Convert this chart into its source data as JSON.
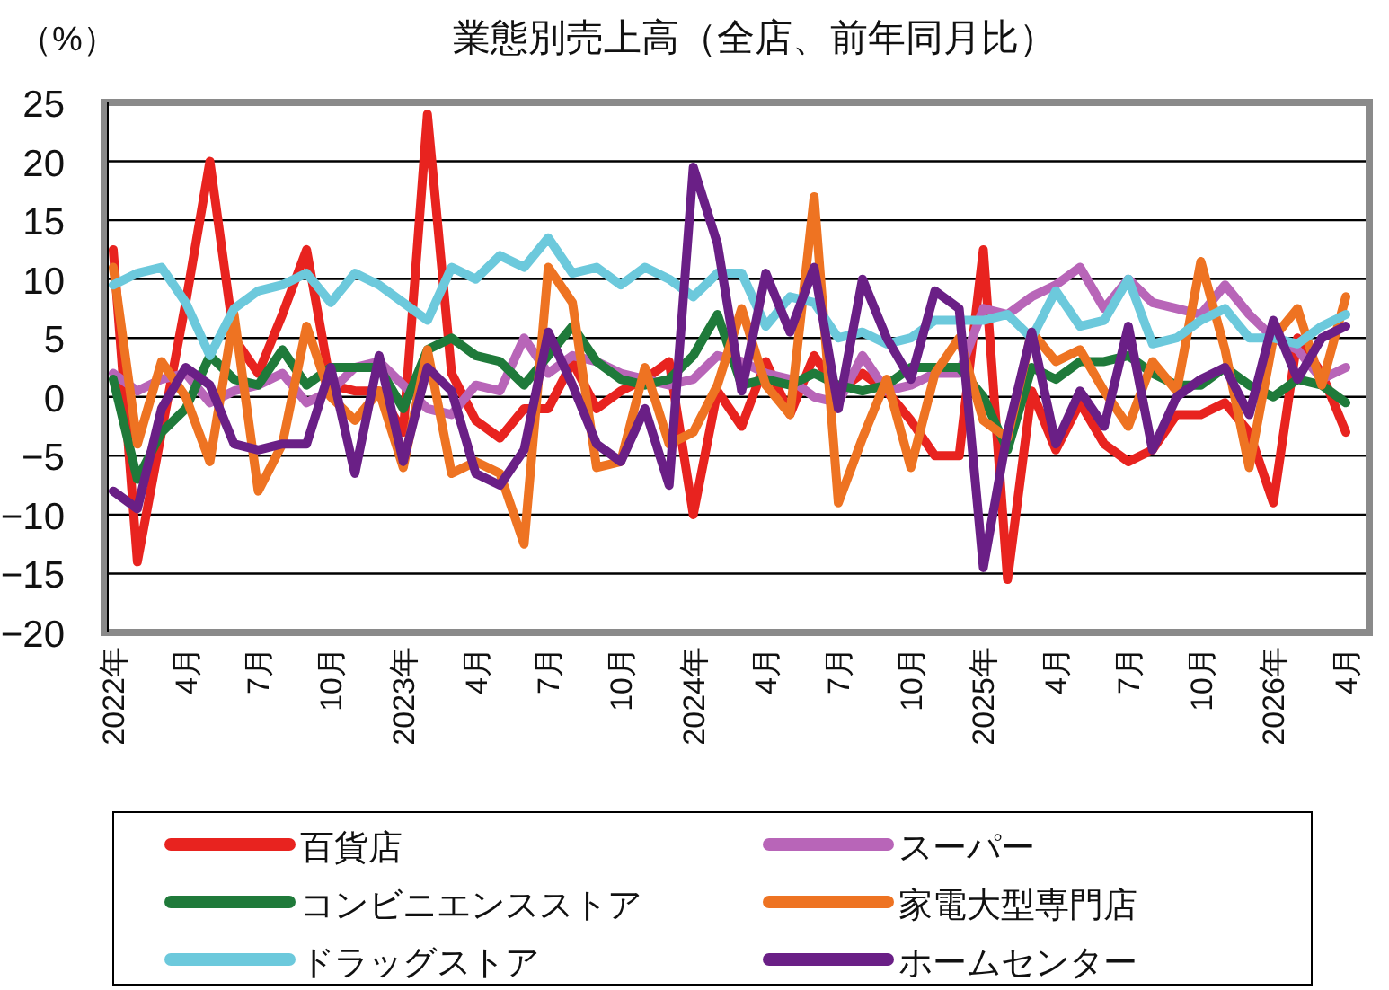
{
  "chart_data": {
    "type": "line",
    "title": "業態別売上高（全店、前年同月比）",
    "ylabel": "（%）",
    "categories": [
      "2022年",
      null,
      null,
      "4月",
      null,
      null,
      "7月",
      null,
      null,
      "10月",
      null,
      null,
      "2023年",
      null,
      null,
      "4月",
      null,
      null,
      "7月",
      null,
      null,
      "10月",
      null,
      null,
      "2024年",
      null,
      null,
      "4月",
      null,
      null,
      "7月",
      null,
      null,
      "10月",
      null,
      null,
      "2025年",
      null,
      null,
      "4月",
      null,
      null,
      "7月",
      null,
      null,
      "10月",
      null,
      null,
      "2026年",
      null,
      null,
      "4月"
    ],
    "ylim": [
      -20,
      25
    ],
    "yticks": [
      -20,
      -15,
      -10,
      -5,
      0,
      5,
      10,
      15,
      20,
      25
    ],
    "grid": "y",
    "legend": "bottom",
    "marker": "none",
    "line_style": "solid",
    "series": [
      {
        "name": "百貨店",
        "color": "#e8231f",
        "values": [
          12.5,
          -14,
          -3,
          8,
          20,
          5,
          2,
          7,
          12.5,
          1,
          0.5,
          0.5,
          -3,
          24,
          2,
          -2,
          -3.5,
          -1,
          -1,
          3,
          -1,
          0.5,
          1.5,
          3,
          -10,
          0.5,
          -2.5,
          3,
          -1.5,
          3.5,
          0.5,
          2,
          0.5,
          -2,
          -5,
          -5,
          12.5,
          -15.5,
          0.5,
          -4.5,
          -0.5,
          -4,
          -5.5,
          -4.5,
          -1.5,
          -1.5,
          -0.5,
          -3,
          -9,
          5,
          2,
          -3
        ]
      },
      {
        "name": "スーパー",
        "color": "#b865b8",
        "values": [
          2,
          0.5,
          1.5,
          2,
          -0.5,
          0.5,
          1,
          2,
          -0.5,
          0.5,
          2.5,
          3,
          1,
          -1,
          -1.5,
          1,
          0.5,
          5,
          2,
          3.5,
          3,
          2,
          1.5,
          1,
          1.5,
          3.5,
          3,
          2,
          1.5,
          0,
          -0.5,
          3.5,
          0.5,
          1,
          2,
          2,
          7.5,
          7,
          8.5,
          9.5,
          11,
          7.5,
          10,
          8,
          7.5,
          7,
          9.5,
          7,
          5,
          4,
          1.5,
          2.5
        ]
      },
      {
        "name": "コンビニエンスストア",
        "color": "#1f7a3a",
        "values": [
          1.5,
          -7,
          -3,
          -1,
          3.5,
          1.5,
          1,
          4,
          1,
          2.5,
          2.5,
          2.5,
          -1,
          4,
          5,
          3.5,
          3,
          1,
          3.5,
          6,
          3,
          1.5,
          1,
          1.5,
          3.5,
          7,
          1,
          1.5,
          1,
          2,
          1,
          0.5,
          1,
          2.5,
          2.5,
          2.5,
          0,
          -4.5,
          2.5,
          1.5,
          3,
          3,
          3.5,
          2,
          1,
          1,
          2.5,
          1,
          0,
          1.5,
          1,
          -0.5
        ]
      },
      {
        "name": "家電大型専門店",
        "color": "#ee7322",
        "values": [
          11,
          -4,
          3,
          0,
          -5.5,
          7,
          -8,
          -4,
          6,
          0,
          -2,
          0.5,
          -6,
          4,
          -6.5,
          -5.5,
          -6.5,
          -12.5,
          11,
          8,
          -6,
          -5.5,
          2.5,
          -4,
          -3,
          1,
          7.5,
          1,
          -1.5,
          17,
          -9,
          -3.5,
          1.5,
          -6,
          2,
          5,
          -2,
          -3.5,
          5.5,
          3,
          4,
          0.5,
          -2.5,
          3,
          0.5,
          11.5,
          4,
          -6,
          5,
          7.5,
          1,
          8.5
        ]
      },
      {
        "name": "ドラッグストア",
        "color": "#6cc9dc",
        "values": [
          9.5,
          10.5,
          11,
          8,
          3.5,
          7.5,
          9,
          9.5,
          10.5,
          8,
          10.5,
          9.5,
          8,
          6.5,
          11,
          10,
          12,
          11,
          13.5,
          10.5,
          11,
          9.5,
          11,
          10,
          8.5,
          10.5,
          10.5,
          6,
          8.5,
          8,
          5,
          5.5,
          4.5,
          5,
          6.5,
          6.5,
          6.5,
          7,
          5,
          9,
          6,
          6.5,
          10,
          4.5,
          5,
          6.5,
          7.5,
          5,
          5,
          4.5,
          6,
          7
        ]
      },
      {
        "name": "ホームセンター",
        "color": "#6a1f86",
        "values": [
          -8,
          -9.5,
          -1,
          2.5,
          1,
          -4,
          -4.5,
          -4,
          -4,
          2.5,
          -6.5,
          3.5,
          -5.5,
          2.5,
          0.5,
          -6.5,
          -7.5,
          -4.5,
          5.5,
          1,
          -4,
          -5.5,
          -1,
          -7.5,
          19.5,
          13,
          0.5,
          10.5,
          5.5,
          11,
          -1,
          10,
          5,
          1.5,
          9,
          7.5,
          -14.5,
          -3,
          5.5,
          -4,
          0.5,
          -2.5,
          6,
          -4.5,
          0,
          1.5,
          2.5,
          -1.5,
          6.5,
          1.5,
          5,
          6
        ]
      }
    ]
  }
}
